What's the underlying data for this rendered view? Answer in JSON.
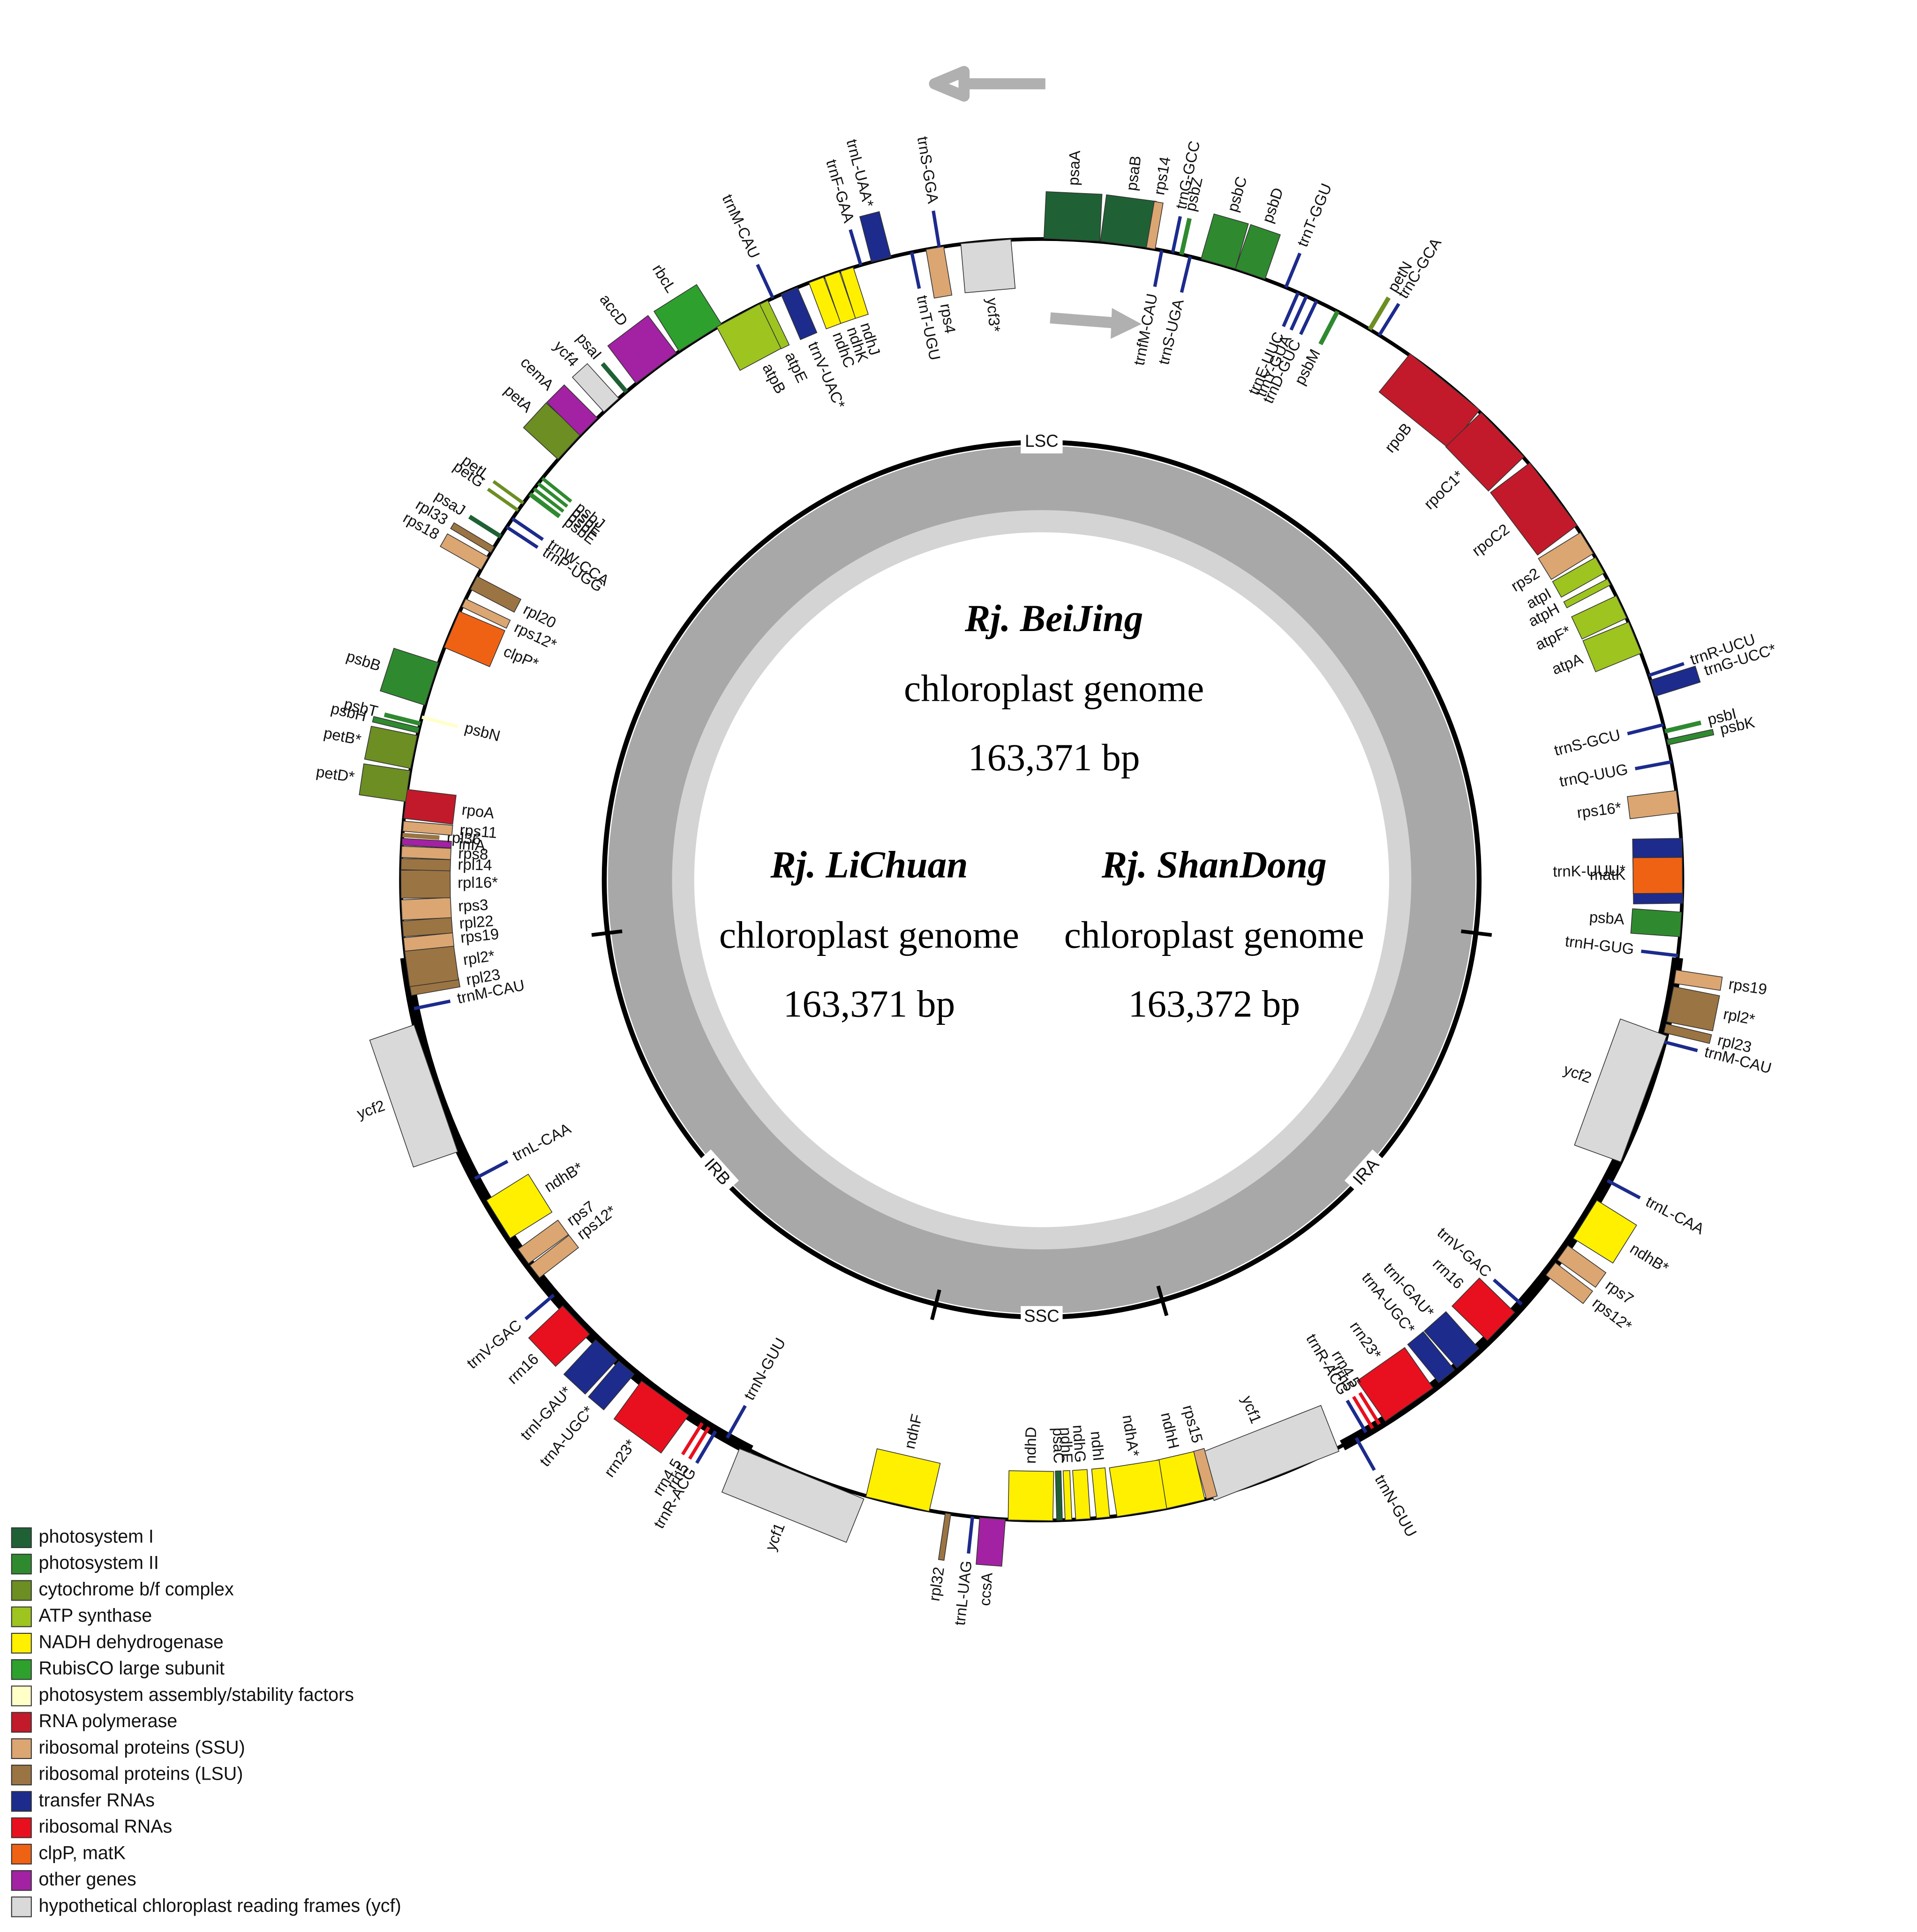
{
  "genes": [
    {
      "label": "psaA",
      "color": "#1f6135"
    },
    {
      "label": "psaB",
      "color": "#1f6135"
    },
    {
      "label": "rps14",
      "color": "#dba672"
    },
    {
      "label": "trnfM-CAU",
      "color": "#1c2b8c"
    },
    {
      "label": "trnG-GCC",
      "color": "#1c2b8c"
    },
    {
      "label": "psbZ",
      "color": "#2f8a2f"
    },
    {
      "label": "trnS-UGA",
      "color": "#1c2b8c"
    },
    {
      "label": "psbC",
      "color": "#2f8a2f"
    },
    {
      "label": "psbD",
      "color": "#2f8a2f"
    },
    {
      "label": "trnT-GGU",
      "color": "#1c2b8c"
    },
    {
      "label": "trnE-UUC",
      "color": "#1c2b8c"
    },
    {
      "label": "trnY-GUA",
      "color": "#1c2b8c"
    },
    {
      "label": "trnD-GUC",
      "color": "#1c2b8c"
    },
    {
      "label": "psbM",
      "color": "#2f8a2f"
    },
    {
      "label": "petN",
      "color": "#6c8e23"
    },
    {
      "label": "trnC-GCA",
      "color": "#1c2b8c"
    },
    {
      "label": "rpoB",
      "color": "#c21a2a"
    },
    {
      "label": "rpoC1*",
      "color": "#c21a2a"
    },
    {
      "label": "rpoC2",
      "color": "#c21a2a"
    },
    {
      "label": "rps2",
      "color": "#dba672"
    },
    {
      "label": "atpI",
      "color": "#9dc41f"
    },
    {
      "label": "atpH",
      "color": "#9dc41f"
    },
    {
      "label": "atpF*",
      "color": "#9dc41f"
    },
    {
      "label": "atpA",
      "color": "#9dc41f"
    },
    {
      "label": "trnR-UCU",
      "color": "#1c2b8c"
    },
    {
      "label": "trnG-UCC*",
      "color": "#1c2b8c"
    },
    {
      "label": "trnS-GCU",
      "color": "#1c2b8c"
    },
    {
      "label": "psbI",
      "color": "#2f8a2f"
    },
    {
      "label": "psbK",
      "color": "#2f8a2f"
    },
    {
      "label": "trnQ-UUG",
      "color": "#1c2b8c"
    },
    {
      "label": "rps16*",
      "color": "#dba672"
    },
    {
      "label": "trnK-UUU*",
      "color": "#1c2b8c"
    },
    {
      "label": "matK",
      "color": "#ef6214"
    },
    {
      "label": "psbA",
      "color": "#2f8a2f"
    },
    {
      "label": "trnH-GUG",
      "color": "#1c2b8c"
    },
    {
      "label": "rps19",
      "color": "#dba672"
    },
    {
      "label": "rpl2*",
      "color": "#9b7443"
    },
    {
      "label": "rpl23",
      "color": "#9b7443"
    },
    {
      "label": "trnM-CAU",
      "color": "#1c2b8c"
    },
    {
      "label": "ycf2",
      "color": "#d9d9d9"
    },
    {
      "label": "trnL-CAA",
      "color": "#1c2b8c"
    },
    {
      "label": "ndhB*",
      "color": "#fff000"
    },
    {
      "label": "rps7",
      "color": "#dba672"
    },
    {
      "label": "rps12*",
      "color": "#dba672"
    },
    {
      "label": "trnV-GAC",
      "color": "#1c2b8c"
    },
    {
      "label": "rrn16",
      "color": "#e8101e"
    },
    {
      "label": "trnI-GAU*",
      "color": "#1c2b8c"
    },
    {
      "label": "trnA-UGC*",
      "color": "#1c2b8c"
    },
    {
      "label": "rrn23*",
      "color": "#e8101e"
    },
    {
      "label": "rrn4.5",
      "color": "#e8101e"
    },
    {
      "label": "rrn5",
      "color": "#e8101e"
    },
    {
      "label": "trnR-ACG",
      "color": "#1c2b8c"
    },
    {
      "label": "trnN-GUU",
      "color": "#1c2b8c"
    },
    {
      "label": "ycf1",
      "color": "#d9d9d9"
    },
    {
      "label": "rps15",
      "color": "#dba672"
    },
    {
      "label": "ndhH",
      "color": "#fff000"
    },
    {
      "label": "ndhA*",
      "color": "#fff000"
    },
    {
      "label": "ndhI",
      "color": "#fff000"
    },
    {
      "label": "ndhG",
      "color": "#fff000"
    },
    {
      "label": "ndhE",
      "color": "#fff000"
    },
    {
      "label": "psaC",
      "color": "#1f6135"
    },
    {
      "label": "ndhD",
      "color": "#fff000"
    },
    {
      "label": "ccsA",
      "color": "#a321a3"
    },
    {
      "label": "trnL-UAG",
      "color": "#1c2b8c"
    },
    {
      "label": "rpl32",
      "color": "#9b7443"
    },
    {
      "label": "ndhF",
      "color": "#fff000"
    },
    {
      "label": "ycf1",
      "color": "#d9d9d9"
    },
    {
      "label": "trnN-GUU",
      "color": "#1c2b8c"
    },
    {
      "label": "trnR-ACG",
      "color": "#1c2b8c"
    },
    {
      "label": "rrn5",
      "color": "#e8101e"
    },
    {
      "label": "rrn4.5",
      "color": "#e8101e"
    },
    {
      "label": "rrn23*",
      "color": "#e8101e"
    },
    {
      "label": "trnA-UGC*",
      "color": "#1c2b8c"
    },
    {
      "label": "trnI-GAU*",
      "color": "#1c2b8c"
    },
    {
      "label": "rrn16",
      "color": "#e8101e"
    },
    {
      "label": "trnV-GAC",
      "color": "#1c2b8c"
    },
    {
      "label": "rps12*",
      "color": "#dba672"
    },
    {
      "label": "rps7",
      "color": "#dba672"
    },
    {
      "label": "ndhB*",
      "color": "#fff000"
    },
    {
      "label": "trnL-CAA",
      "color": "#1c2b8c"
    },
    {
      "label": "ycf2",
      "color": "#d9d9d9"
    },
    {
      "label": "trnM-CAU",
      "color": "#1c2b8c"
    },
    {
      "label": "rpl23",
      "color": "#9b7443"
    },
    {
      "label": "rpl2*",
      "color": "#9b7443"
    },
    {
      "label": "rps19",
      "color": "#dba672"
    },
    {
      "label": "rpl22",
      "color": "#9b7443"
    },
    {
      "label": "rps3",
      "color": "#dba672"
    },
    {
      "label": "rpl16*",
      "color": "#9b7443"
    },
    {
      "label": "rpl14",
      "color": "#9b7443"
    },
    {
      "label": "rps8",
      "color": "#dba672"
    },
    {
      "label": "infA",
      "color": "#a321a3"
    },
    {
      "label": "rpl36",
      "color": "#9b7443"
    },
    {
      "label": "rps11",
      "color": "#dba672"
    },
    {
      "label": "rpoA",
      "color": "#c21a2a"
    },
    {
      "label": "petD*",
      "color": "#6c8e23"
    },
    {
      "label": "petB*",
      "color": "#6c8e23"
    },
    {
      "label": "psbH",
      "color": "#2f8a2f"
    },
    {
      "label": "psbT",
      "color": "#2f8a2f"
    },
    {
      "label": "psbN",
      "color": "#ffffc8"
    },
    {
      "label": "psbB",
      "color": "#2f8a2f"
    },
    {
      "label": "clpP*",
      "color": "#ef6214"
    },
    {
      "label": "rps12*",
      "color": "#dba672"
    },
    {
      "label": "rpl20",
      "color": "#9b7443"
    },
    {
      "label": "rps18",
      "color": "#dba672"
    },
    {
      "label": "rpl33",
      "color": "#9b7443"
    },
    {
      "label": "psaJ",
      "color": "#1f6135"
    },
    {
      "label": "trnP-UGG",
      "color": "#1c2b8c"
    },
    {
      "label": "trnW-CCA",
      "color": "#1c2b8c"
    },
    {
      "label": "petG",
      "color": "#6c8e23"
    },
    {
      "label": "petL",
      "color": "#6c8e23"
    },
    {
      "label": "psbE",
      "color": "#2f8a2f"
    },
    {
      "label": "psbF",
      "color": "#2f8a2f"
    },
    {
      "label": "psbL",
      "color": "#2f8a2f"
    },
    {
      "label": "psbJ",
      "color": "#2f8a2f"
    },
    {
      "label": "petA",
      "color": "#6c8e23"
    },
    {
      "label": "cemA",
      "color": "#a321a3"
    },
    {
      "label": "ycf4",
      "color": "#d9d9d9"
    },
    {
      "label": "psaI",
      "color": "#1f6135"
    },
    {
      "label": "accD",
      "color": "#a321a3"
    },
    {
      "label": "rbcL",
      "color": "#2ea02e"
    },
    {
      "label": "atpB",
      "color": "#9dc41f"
    },
    {
      "label": "atpE",
      "color": "#9dc41f"
    },
    {
      "label": "trnM-CAU",
      "color": "#1c2b8c"
    },
    {
      "label": "trnV-UAC*",
      "color": "#1c2b8c"
    },
    {
      "label": "ndhC",
      "color": "#fff000"
    },
    {
      "label": "ndhK",
      "color": "#fff000"
    },
    {
      "label": "ndhJ",
      "color": "#fff000"
    },
    {
      "label": "trnF-GAA",
      "color": "#1c2b8c"
    },
    {
      "label": "trnL-UAA*",
      "color": "#1c2b8c"
    },
    {
      "label": "trnT-UGU",
      "color": "#1c2b8c"
    },
    {
      "label": "rps4",
      "color": "#dba672"
    },
    {
      "label": "trnS-GGA",
      "color": "#1c2b8c"
    },
    {
      "label": "ycf3*",
      "color": "#d9d9d9"
    }
  ],
  "regions": [
    "LSC",
    "IRA",
    "SSC",
    "IRB"
  ],
  "genomes": [
    {
      "name": "Rj. BeiJing",
      "description": "chloroplast genome",
      "size": "163,371 bp"
    },
    {
      "name": "Rj. LiChuan",
      "description": "chloroplast genome",
      "size": "163,371 bp"
    },
    {
      "name": "Rj. ShanDong",
      "description": "chloroplast genome",
      "size": "163,372 bp"
    }
  ],
  "legend": [
    {
      "label": "photosystem I",
      "color": "#1f6135"
    },
    {
      "label": "photosystem II",
      "color": "#2f8a2f"
    },
    {
      "label": "cytochrome b/f complex",
      "color": "#6c8e23"
    },
    {
      "label": "ATP synthase",
      "color": "#9dc41f"
    },
    {
      "label": "NADH dehydrogenase",
      "color": "#fff000"
    },
    {
      "label": "RubisCO large subunit",
      "color": "#2ea02e"
    },
    {
      "label": "photosystem assembly/stability factors",
      "color": "#ffffc8"
    },
    {
      "label": "RNA polymerase",
      "color": "#c21a2a"
    },
    {
      "label": "ribosomal proteins (SSU)",
      "color": "#dba672"
    },
    {
      "label": "ribosomal proteins (LSU)",
      "color": "#9b7443"
    },
    {
      "label": "transfer RNAs",
      "color": "#1c2b8c"
    },
    {
      "label": "ribosomal RNAs",
      "color": "#e8101e"
    },
    {
      "label": "clpP, matK",
      "color": "#ef6214"
    },
    {
      "label": "other genes",
      "color": "#a321a3"
    },
    {
      "label": "hypothetical chloroplast reading frames (ycf)",
      "color": "#d9d9d9"
    }
  ]
}
